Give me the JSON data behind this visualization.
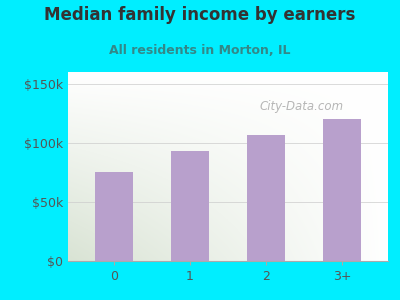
{
  "title": "Median family income by earners",
  "subtitle": "All residents in Morton, IL",
  "categories": [
    "0",
    "1",
    "2",
    "3+"
  ],
  "values": [
    75000,
    93000,
    107000,
    120000
  ],
  "bar_color": "#b8a0cc",
  "background_outer": "#00eeff",
  "title_color": "#333333",
  "subtitle_color": "#338888",
  "axis_color": "#555555",
  "yticks": [
    0,
    50000,
    100000,
    150000
  ],
  "ytick_labels": [
    "$0",
    "$50k",
    "$100k",
    "$150k"
  ],
  "ylim": [
    0,
    160000
  ],
  "title_fontsize": 12,
  "subtitle_fontsize": 9,
  "watermark_text": "City-Data.com",
  "watermark_color": "#aaaaaa"
}
